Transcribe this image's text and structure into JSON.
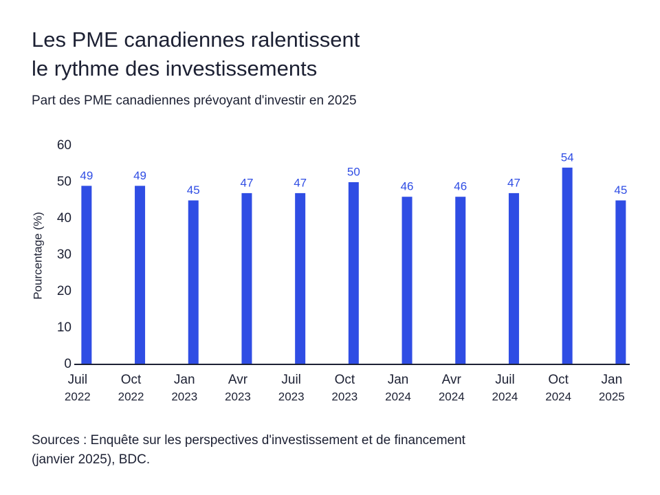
{
  "chart_data": {
    "type": "bar",
    "title": [
      "Les PME canadiennes ralentissent",
      "le rythme des investissements"
    ],
    "subtitle": "Part des PME canadiennes prévoyant d'investir en 2025",
    "y_label": "Pourcentage (%)",
    "categories": [
      [
        "Juil",
        "2022"
      ],
      [
        "Oct",
        "2022"
      ],
      [
        "Jan",
        "2023"
      ],
      [
        "Avr",
        "2023"
      ],
      [
        "Juil",
        "2023"
      ],
      [
        "Oct",
        "2023"
      ],
      [
        "Jan",
        "2024"
      ],
      [
        "Avr",
        "2024"
      ],
      [
        "Juil",
        "2024"
      ],
      [
        "Oct",
        "2024"
      ],
      [
        "Jan",
        "2025"
      ]
    ],
    "values": [
      49,
      49,
      45,
      47,
      47,
      50,
      46,
      46,
      47,
      54,
      45
    ],
    "color": "#2f4de4",
    "ylim": [
      0,
      60
    ],
    "yticks": [
      0,
      10,
      20,
      30,
      40,
      50,
      60
    ],
    "grid": false,
    "source": [
      "Sources : Enquête sur les perspectives d'investissement et de financement",
      "(janvier 2025), BDC."
    ]
  }
}
